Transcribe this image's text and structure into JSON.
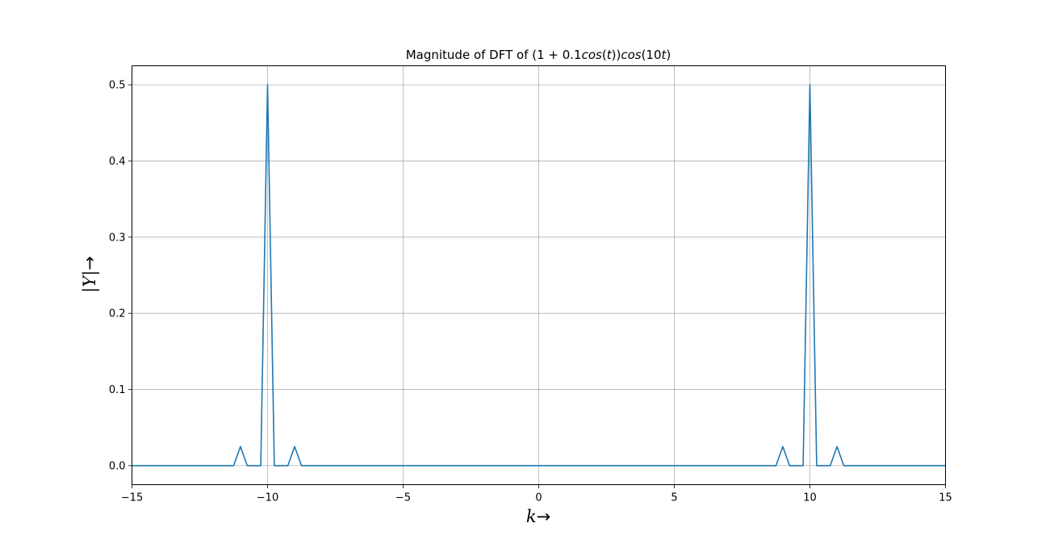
{
  "chart_data": {
    "type": "line",
    "title": "Magnitude of DFT of (1 + 0.1cos(t))cos(10t)",
    "title_parts": {
      "prefix": "Magnitude of DFT of ",
      "formula_lead": "(1 + 0.1",
      "cos_1": "cos",
      "paren_t_open": "(",
      "t_1": "t",
      "paren_t_close": "))",
      "cos_2": "cos",
      "ten_open": "(10",
      "t_2": "t",
      "close": ")"
    },
    "xlabel": "k→",
    "xlabel_parts": {
      "var": "k",
      "arrow": "→"
    },
    "ylabel": "|Y|→",
    "ylabel_parts": {
      "var": "|Y|",
      "arrow": "→"
    },
    "xlim": [
      -15,
      15
    ],
    "ylim": [
      -0.025,
      0.525
    ],
    "xticks": [
      -15,
      -10,
      -5,
      0,
      5,
      10,
      15
    ],
    "xtick_labels": [
      "−15",
      "−10",
      "−5",
      "0",
      "5",
      "10",
      "15"
    ],
    "yticks": [
      0.0,
      0.1,
      0.2,
      0.3,
      0.4,
      0.5
    ],
    "ytick_labels": [
      "0.0",
      "0.1",
      "0.2",
      "0.3",
      "0.4",
      "0.5"
    ],
    "grid": true,
    "series": [
      {
        "color": "#1f77b4",
        "x": [
          -15.0,
          -11.25,
          -11.0,
          -10.75,
          -10.25,
          -10.0,
          -9.75,
          -9.25,
          -9.0,
          -8.75,
          8.75,
          9.0,
          9.25,
          9.75,
          10.0,
          10.25,
          10.75,
          11.0,
          11.25,
          15.0
        ],
        "y": [
          0.0,
          0.0,
          0.025,
          0.0,
          0.0,
          0.5,
          0.0,
          0.0,
          0.025,
          0.0,
          0.0,
          0.025,
          0.0,
          0.0,
          0.5,
          0.0,
          0.0,
          0.025,
          0.0,
          0.0
        ]
      }
    ]
  }
}
